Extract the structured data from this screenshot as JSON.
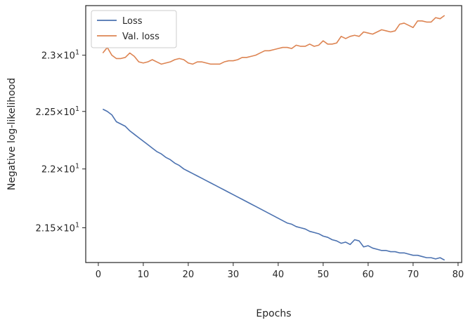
{
  "chart_data": {
    "type": "line",
    "xlabel": "Epochs",
    "ylabel": "Negative log-likelihood",
    "xlim": [
      -2.8,
      80.8
    ],
    "ylim": [
      21.21,
      23.45
    ],
    "yscale": "log",
    "grid": false,
    "legend_position": "top-left",
    "x_ticks": [
      {
        "value": 0,
        "label": "0"
      },
      {
        "value": 10,
        "label": "10"
      },
      {
        "value": 20,
        "label": "20"
      },
      {
        "value": 30,
        "label": "30"
      },
      {
        "value": 40,
        "label": "40"
      },
      {
        "value": 50,
        "label": "50"
      },
      {
        "value": 60,
        "label": "60"
      },
      {
        "value": 70,
        "label": "70"
      },
      {
        "value": 80,
        "label": "80"
      }
    ],
    "y_ticks": [
      {
        "value": 21.5,
        "mantissa": "2.15",
        "base": "10",
        "exponent": "1"
      },
      {
        "value": 22.0,
        "mantissa": "2.2",
        "base": "10",
        "exponent": "1"
      },
      {
        "value": 22.5,
        "mantissa": "2.25",
        "base": "10",
        "exponent": "1"
      },
      {
        "value": 23.0,
        "mantissa": "2.3",
        "base": "10",
        "exponent": "1"
      }
    ],
    "x": [
      1,
      2,
      3,
      4,
      5,
      6,
      7,
      8,
      9,
      10,
      11,
      12,
      13,
      14,
      15,
      16,
      17,
      18,
      19,
      20,
      21,
      22,
      23,
      24,
      25,
      26,
      27,
      28,
      29,
      30,
      31,
      32,
      33,
      34,
      35,
      36,
      37,
      38,
      39,
      40,
      41,
      42,
      43,
      44,
      45,
      46,
      47,
      48,
      49,
      50,
      51,
      52,
      53,
      54,
      55,
      56,
      57,
      58,
      59,
      60,
      61,
      62,
      63,
      64,
      65,
      66,
      67,
      68,
      69,
      70,
      71,
      72,
      73,
      74,
      75,
      76,
      77
    ],
    "series": [
      {
        "name": "Loss",
        "color": "#4c72b0",
        "values": [
          22.52,
          22.5,
          22.47,
          22.41,
          22.39,
          22.37,
          22.33,
          22.3,
          22.27,
          22.24,
          22.21,
          22.18,
          22.15,
          22.13,
          22.1,
          22.08,
          22.05,
          22.03,
          22.0,
          21.98,
          21.96,
          21.94,
          21.92,
          21.9,
          21.88,
          21.86,
          21.84,
          21.82,
          21.8,
          21.78,
          21.76,
          21.74,
          21.72,
          21.7,
          21.68,
          21.66,
          21.64,
          21.62,
          21.6,
          21.58,
          21.56,
          21.54,
          21.53,
          21.51,
          21.5,
          21.49,
          21.47,
          21.46,
          21.45,
          21.43,
          21.42,
          21.4,
          21.39,
          21.37,
          21.38,
          21.36,
          21.4,
          21.39,
          21.34,
          21.35,
          21.33,
          21.32,
          21.31,
          21.31,
          21.3,
          21.3,
          21.29,
          21.29,
          21.28,
          21.27,
          21.27,
          21.26,
          21.25,
          21.25,
          21.24,
          21.25,
          21.23
        ]
      },
      {
        "name": "Val. loss",
        "color": "#dd8452",
        "values": [
          23.02,
          23.07,
          23.0,
          22.97,
          22.97,
          22.98,
          23.02,
          22.99,
          22.94,
          22.93,
          22.94,
          22.96,
          22.94,
          22.92,
          22.93,
          22.94,
          22.96,
          22.97,
          22.96,
          22.93,
          22.92,
          22.94,
          22.94,
          22.93,
          22.92,
          22.92,
          22.92,
          22.94,
          22.95,
          22.95,
          22.96,
          22.98,
          22.98,
          22.99,
          23.0,
          23.02,
          23.04,
          23.04,
          23.05,
          23.06,
          23.07,
          23.07,
          23.06,
          23.09,
          23.08,
          23.08,
          23.1,
          23.08,
          23.09,
          23.13,
          23.1,
          23.1,
          23.11,
          23.17,
          23.15,
          23.17,
          23.18,
          23.17,
          23.21,
          23.2,
          23.19,
          23.21,
          23.23,
          23.22,
          23.21,
          23.22,
          23.28,
          23.29,
          23.27,
          23.25,
          23.31,
          23.31,
          23.3,
          23.3,
          23.34,
          23.33,
          23.36
        ]
      }
    ]
  }
}
